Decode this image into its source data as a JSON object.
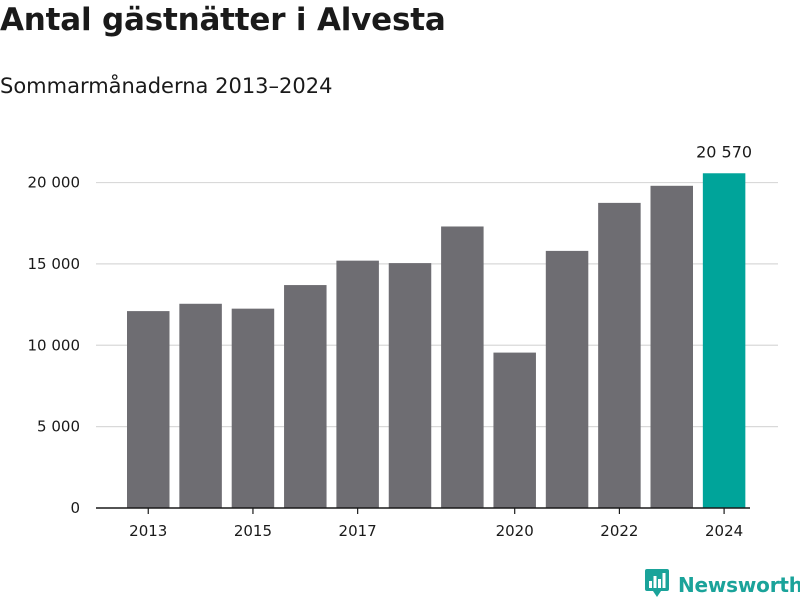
{
  "title": "Antal gästnätter i Alvesta",
  "subtitle": "Sommarmånaderna 2013–2024",
  "brand": {
    "name": "Newsworthy",
    "icon": "newsworthy-logo-icon",
    "color": "#1aa39a"
  },
  "chart_data": {
    "type": "bar",
    "title": "Antal gästnätter i Alvesta",
    "subtitle": "Sommarmånaderna 2013–2024",
    "categories": [
      "2013",
      "2014",
      "2015",
      "2016",
      "2017",
      "2018",
      "2019",
      "2020",
      "2021",
      "2022",
      "2023",
      "2024"
    ],
    "values": [
      12100,
      12550,
      12250,
      13700,
      15200,
      15050,
      17300,
      9550,
      15800,
      18750,
      19800,
      20570
    ],
    "x_tick_labels": [
      "2013",
      "",
      "2015",
      "",
      "2017",
      "",
      "",
      "2020",
      "",
      "2022",
      "",
      "2024"
    ],
    "y_ticks": [
      0,
      5000,
      10000,
      15000,
      20000
    ],
    "y_tick_labels": [
      "0",
      "5 000",
      "10 000",
      "15 000",
      "20 000"
    ],
    "ylim": [
      0,
      22000
    ],
    "data_labels": [
      {
        "category": "2024",
        "text": "20 570"
      }
    ],
    "xlabel": "",
    "ylabel": "",
    "grid": true,
    "colors": {
      "default": "#6e6d72",
      "highlight": "#00a49a",
      "grid": "#d9d9d9",
      "axis": "#1a1a1a"
    },
    "highlight_category": "2024"
  }
}
